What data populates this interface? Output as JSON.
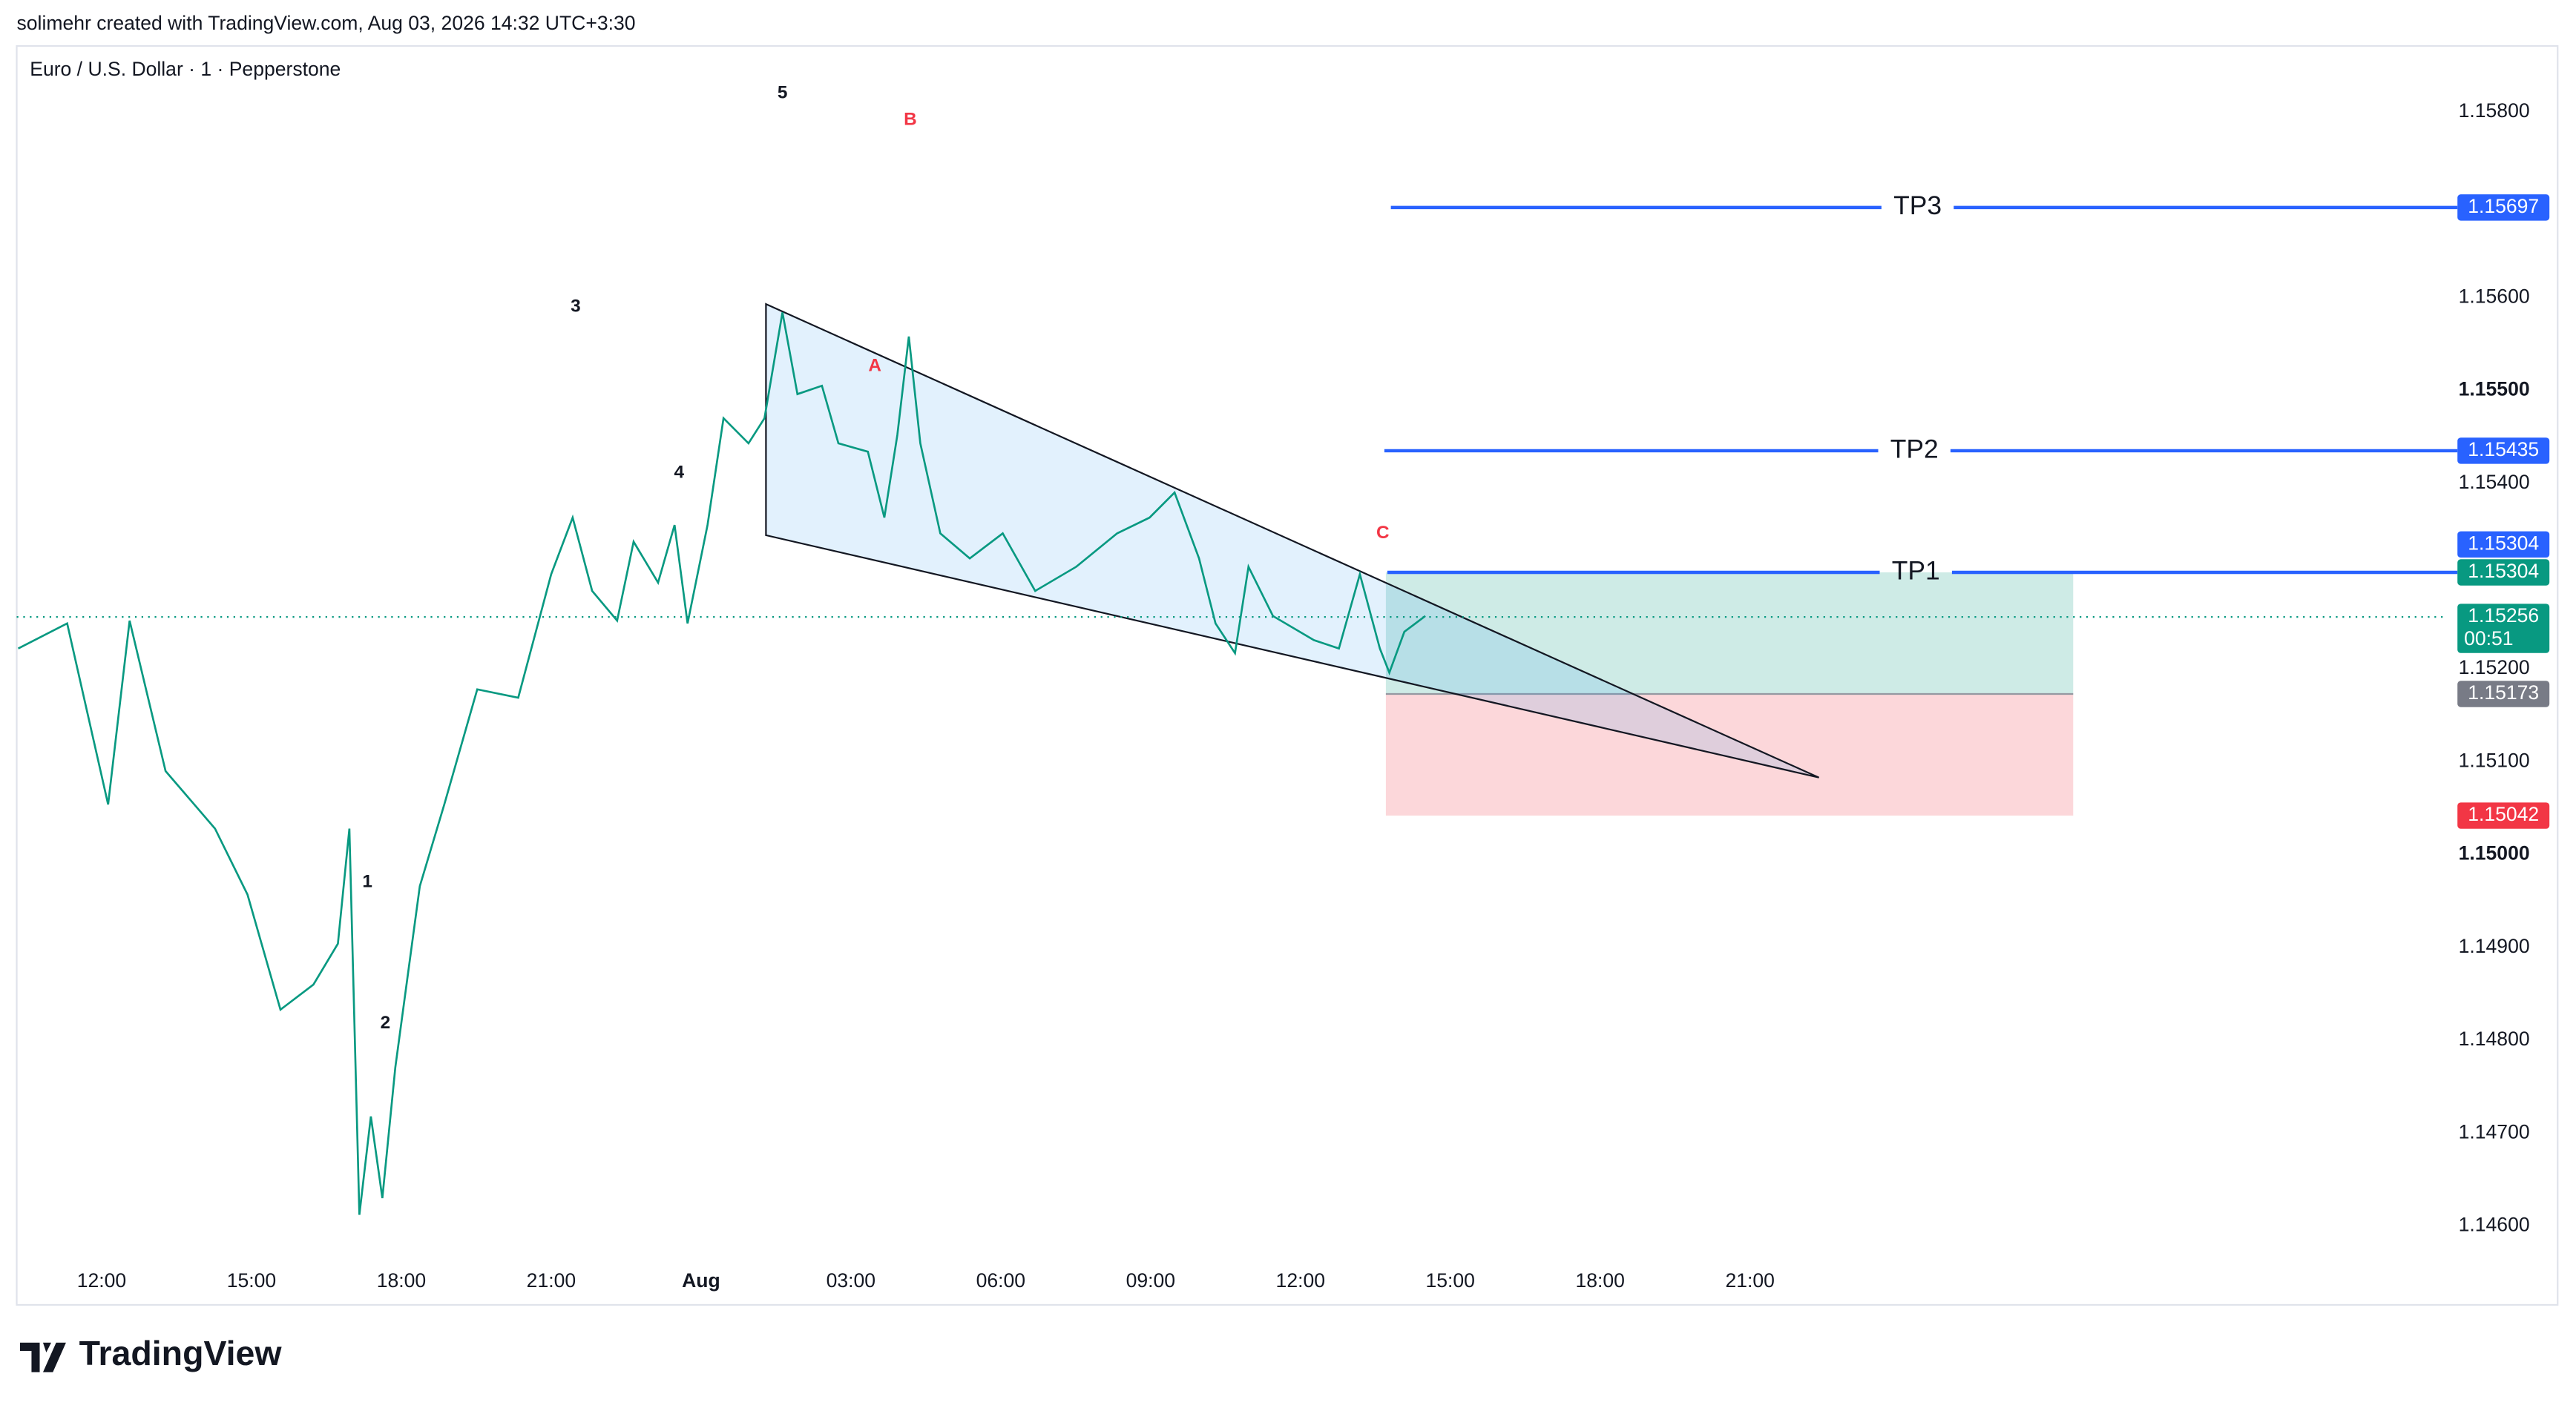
{
  "header": {
    "caption": "solimehr created with TradingView.com, Aug 03, 2026 14:32 UTC+3:30"
  },
  "chart_data": {
    "type": "line",
    "title": "Euro / U.S. Dollar · 1 · Pepperstone",
    "x": [
      10.33,
      11.31,
      12.13,
      12.56,
      13.28,
      14.27,
      14.92,
      15.58,
      16.24,
      16.73,
      16.96,
      17.16,
      17.39,
      17.62,
      17.88,
      18.37,
      18.86,
      19.52,
      20.34,
      21.0,
      21.43,
      21.82,
      22.32,
      22.65,
      23.14,
      23.47,
      23.73,
      24.13,
      24.45,
      24.95,
      25.27,
      25.63,
      25.93,
      26.42,
      26.75,
      27.34,
      27.67,
      27.93,
      28.16,
      28.39,
      28.79,
      29.38,
      30.04,
      30.69,
      31.51,
      32.33,
      32.98,
      33.48,
      33.97,
      34.3,
      34.69,
      34.96,
      35.45,
      36.27,
      36.77,
      37.19,
      37.59,
      37.78,
      38.08,
      38.5
    ],
    "series": [
      {
        "color": "#089981",
        "values": [
          1.15222,
          1.15249,
          1.15054,
          1.15252,
          1.1509,
          1.15028,
          1.14957,
          1.14833,
          1.1486,
          1.14904,
          1.15028,
          1.14612,
          1.14718,
          1.1463,
          1.14771,
          1.14966,
          1.15054,
          1.15178,
          1.15169,
          1.15302,
          1.15363,
          1.15284,
          1.15252,
          1.15337,
          1.15293,
          1.15355,
          1.15249,
          1.15355,
          1.1547,
          1.15443,
          1.1547,
          1.15584,
          1.15496,
          1.15505,
          1.15443,
          1.15434,
          1.15363,
          1.15452,
          1.15558,
          1.15443,
          1.15346,
          1.15319,
          1.15346,
          1.15284,
          1.1531,
          1.15346,
          1.15363,
          1.1539,
          1.15319,
          1.15249,
          1.15217,
          1.1531,
          1.15257,
          1.15231,
          1.15222,
          1.15302,
          1.15222,
          1.15196,
          1.1524,
          1.15257
        ]
      }
    ],
    "xlim": [
      10.3,
      58.9
    ],
    "xticks": [
      {
        "value": 12,
        "label": "12:00"
      },
      {
        "value": 15,
        "label": "15:00"
      },
      {
        "value": 18,
        "label": "18:00"
      },
      {
        "value": 21,
        "label": "21:00"
      },
      {
        "value": 24,
        "label": "Aug",
        "bold": true
      },
      {
        "value": 27,
        "label": "03:00"
      },
      {
        "value": 30,
        "label": "06:00"
      },
      {
        "value": 33,
        "label": "09:00"
      },
      {
        "value": 36,
        "label": "12:00"
      },
      {
        "value": 39,
        "label": "15:00"
      },
      {
        "value": 42,
        "label": "18:00"
      },
      {
        "value": 45,
        "label": "21:00"
      }
    ],
    "ylim": [
      1.14515,
      1.15871
    ],
    "yticks": [
      {
        "value": 1.158,
        "label": "1.15800"
      },
      {
        "value": 1.156,
        "label": "1.15600"
      },
      {
        "value": 1.155,
        "label": "1.15500",
        "bold": true
      },
      {
        "value": 1.154,
        "label": "1.15400"
      },
      {
        "value": 1.152,
        "label": "1.15200"
      },
      {
        "value": 1.151,
        "label": "1.15100"
      },
      {
        "value": 1.15,
        "label": "1.15000",
        "bold": true
      },
      {
        "value": 1.149,
        "label": "1.14900"
      },
      {
        "value": 1.148,
        "label": "1.14800"
      },
      {
        "value": 1.147,
        "label": "1.14700"
      },
      {
        "value": 1.146,
        "label": "1.14600"
      }
    ],
    "current_price": 1.15256,
    "price_labels": [
      {
        "value": 1.15697,
        "color": "#2962ff"
      },
      {
        "value": 1.15435,
        "color": "#2962ff"
      },
      {
        "value": 1.15304,
        "color": "#089981"
      },
      {
        "value": 1.15304,
        "color": "#2962ff"
      },
      {
        "value": 1.15256,
        "color": "#089981",
        "countdown": "00:51"
      },
      {
        "value": 1.15173,
        "color": "#787b86"
      },
      {
        "value": 1.15042,
        "color": "#f23645"
      }
    ],
    "targets": [
      {
        "label": "TP3",
        "value": 1.15697,
        "start": 37.81,
        "color": "#2962ff"
      },
      {
        "label": "TP2",
        "value": 1.15435,
        "start": 37.68,
        "color": "#2962ff"
      },
      {
        "label": "TP1",
        "value": 1.15304,
        "start": 37.74,
        "color": "#2962ff"
      }
    ],
    "wedge": [
      [
        25.3,
        1.15593
      ],
      [
        46.38,
        1.15083
      ],
      [
        25.3,
        1.15344
      ]
    ],
    "position": {
      "start": 37.71,
      "end": 51.47,
      "entry": 1.15173,
      "target": 1.15304,
      "stop": 1.15042
    },
    "annotations": [
      {
        "text": "1",
        "x": 17.32,
        "y": 1.1497,
        "color": "#131722"
      },
      {
        "text": "2",
        "x": 17.68,
        "y": 1.14818,
        "color": "#131722"
      },
      {
        "text": "3",
        "x": 21.49,
        "y": 1.1559,
        "color": "#131722"
      },
      {
        "text": "4",
        "x": 23.56,
        "y": 1.15411,
        "color": "#131722"
      },
      {
        "text": "5",
        "x": 25.63,
        "y": 1.1582,
        "color": "#131722"
      },
      {
        "text": "A",
        "x": 27.48,
        "y": 1.15526,
        "color": "#f23645"
      },
      {
        "text": "B",
        "x": 28.19,
        "y": 1.15791,
        "color": "#f23645"
      },
      {
        "text": "C",
        "x": 37.65,
        "y": 1.15346,
        "color": "#f23645"
      }
    ]
  },
  "footer": {
    "logo": "TradingView"
  }
}
